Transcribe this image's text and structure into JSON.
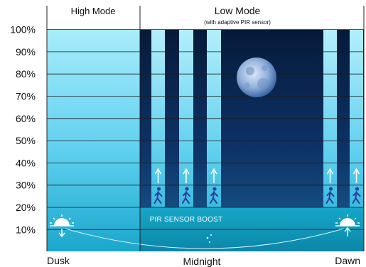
{
  "chart_data": {
    "type": "area",
    "title": "",
    "xlabel": "",
    "ylabel": "",
    "ylim": [
      0,
      100
    ],
    "y_ticks": [
      "10%",
      "20%",
      "30%",
      "40%",
      "50%",
      "60%",
      "70%",
      "80%",
      "90%",
      "100%"
    ],
    "x_categories": [
      "Dusk",
      "Midnight",
      "Dawn"
    ],
    "modes": [
      {
        "title": "High Mode",
        "subtitle": "",
        "light_level_percent": 100
      },
      {
        "title": "Low Mode",
        "subtitle": "(with adaptive PIR sensor)",
        "light_level_percent": 20
      }
    ],
    "pir_boost": {
      "label": "PIR SENSOR BOOST",
      "boost_level_percent": 100,
      "boost_events": 5
    },
    "grid": true,
    "colors": {
      "high_mode_top": "#a8ecfb",
      "high_mode_bottom": "#1aa6cc",
      "night_sky": "#0b2a57",
      "baseline_band": "#0d8fb0",
      "grid_line": "#222222"
    }
  },
  "icons": {
    "sunset": "sunset-icon",
    "moon": "moon-icon",
    "crescent": "crescent-moon-icon",
    "sunrise": "sunrise-icon",
    "walker": "walking-person-icon",
    "arrow": "up-arrow-icon"
  }
}
